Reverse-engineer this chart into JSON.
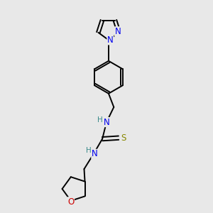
{
  "bg_color": "#e8e8e8",
  "bond_color": "#000000",
  "bond_width": 1.4,
  "N_color": "#0000ee",
  "O_color": "#cc0000",
  "S_color": "#888800",
  "H_color": "#3a8a8a",
  "font_size": 8.5,
  "figsize": [
    3.0,
    3.0
  ],
  "dpi": 100,
  "xlim": [
    2.5,
    8.5
  ],
  "ylim": [
    0.5,
    10.5
  ]
}
